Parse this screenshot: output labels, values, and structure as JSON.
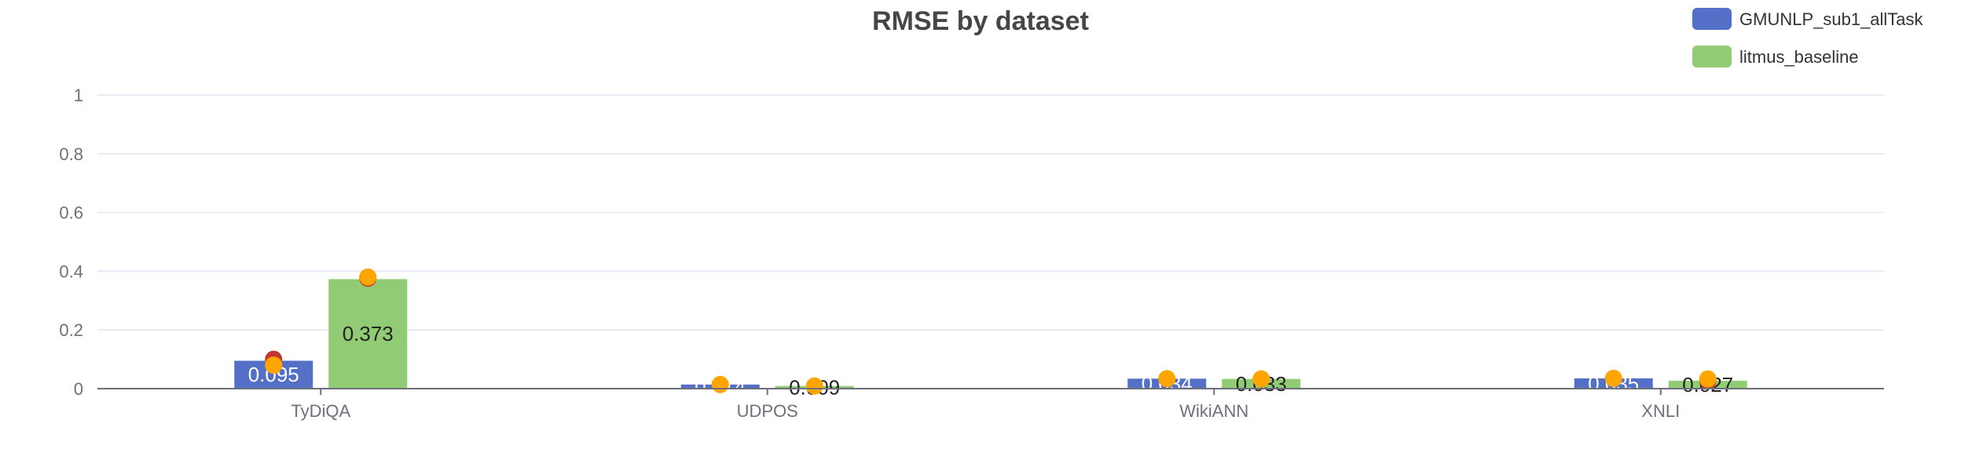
{
  "chart_data": {
    "type": "bar",
    "title": "RMSE by dataset",
    "xlabel": "",
    "ylabel": "",
    "categories": [
      "TyDiQA",
      "UDPOS",
      "WikiANN",
      "XNLI"
    ],
    "ylim": [
      0,
      1
    ],
    "yticks": [
      0,
      0.2,
      0.4,
      0.6,
      0.8,
      1
    ],
    "ytick_labels": [
      "0",
      "0.2",
      "0.4",
      "0.6",
      "0.8",
      "1"
    ],
    "grid": true,
    "legend_position": "top-right",
    "series": [
      {
        "name": "GMUNLP_sub1_allTask",
        "color": "#5470c6",
        "label_color": "#ffffff",
        "values": [
          0.095,
          0.014,
          0.034,
          0.035
        ],
        "labels": [
          "0.095",
          "0.014",
          "0.034",
          "0.035"
        ]
      },
      {
        "name": "litmus_baseline",
        "color": "#91cc75",
        "label_color": "#222222",
        "values": [
          0.373,
          0.009,
          0.033,
          0.027
        ],
        "labels": [
          "0.373",
          "0.009",
          "0.033",
          "0.027"
        ]
      }
    ],
    "markers": [
      {
        "series": 0,
        "category": 0,
        "value": 0.1,
        "color": "#c23531"
      },
      {
        "series": 0,
        "category": 0,
        "value": 0.08,
        "color": "#ffa500"
      },
      {
        "series": 1,
        "category": 0,
        "value": 0.376,
        "color": "#c23531"
      },
      {
        "series": 1,
        "category": 0,
        "value": 0.38,
        "color": "#ffa500"
      },
      {
        "series": 0,
        "category": 1,
        "value": 0.014,
        "color": "#ffa500"
      },
      {
        "series": 1,
        "category": 1,
        "value": 0.009,
        "color": "#ffa500"
      },
      {
        "series": 0,
        "category": 2,
        "value": 0.034,
        "color": "#ffa500"
      },
      {
        "series": 1,
        "category": 2,
        "value": 0.033,
        "color": "#ffa500"
      },
      {
        "series": 0,
        "category": 3,
        "value": 0.035,
        "color": "#ffa500"
      },
      {
        "series": 1,
        "category": 3,
        "value": 0.027,
        "color": "#c23531"
      },
      {
        "series": 1,
        "category": 3,
        "value": 0.033,
        "color": "#ffa500"
      }
    ]
  }
}
